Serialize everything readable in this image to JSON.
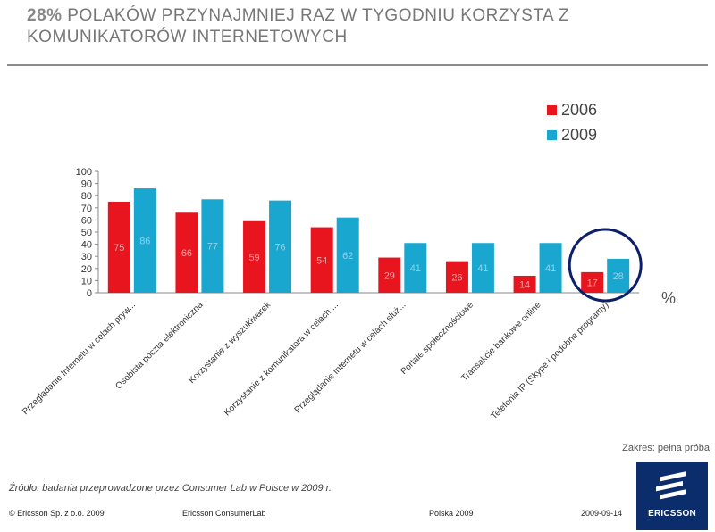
{
  "header": {
    "title_bold": "28%",
    "title_rest_1": " POLAKÓW PRZYNAJMNIEJ RAZ W TYGODNIU KORZYSTA Z",
    "title_rest_2": "KOMUNIKATORÓW INTERNETOWYCH"
  },
  "chart_data": {
    "type": "bar",
    "categories": [
      "Przeglądanie Internetu w celach pryw...",
      "Osobista poczta elektroniczna",
      "Korzystanie z wyszukiwarek",
      "Korzystanie z komunikatora w celach ...",
      "Przeglądanie Internetu w celach służ...",
      "Portale społecznościowe",
      "Transakcje bankowe online",
      "Telefonia IP (Skype i podobne programy)"
    ],
    "series": [
      {
        "name": "2006",
        "color": "#e8141e",
        "values": [
          75,
          66,
          59,
          54,
          29,
          26,
          14,
          17
        ]
      },
      {
        "name": "2009",
        "color": "#1aa7cf",
        "values": [
          86,
          77,
          76,
          62,
          41,
          41,
          41,
          28
        ]
      }
    ],
    "ylim": [
      0,
      100
    ],
    "yticks": [
      0,
      10,
      20,
      30,
      40,
      50,
      60,
      70,
      80,
      90,
      100
    ],
    "unit_label": "%",
    "legend_position": "top-right",
    "highlight_category_index": 7,
    "highlight_color": "#0b1f6b"
  },
  "footer": {
    "scope": "Zakres: pełna próba",
    "source": "Źródło: badania przeprowadzone przez Consumer Lab w Polsce w 2009 r.",
    "copyright": "© Ericsson Sp. z o.o. 2009",
    "lab": "Ericsson ConsumerLab",
    "country": "Polska 2009",
    "date": "2009-09-14",
    "logo_text": "ERICSSON"
  }
}
